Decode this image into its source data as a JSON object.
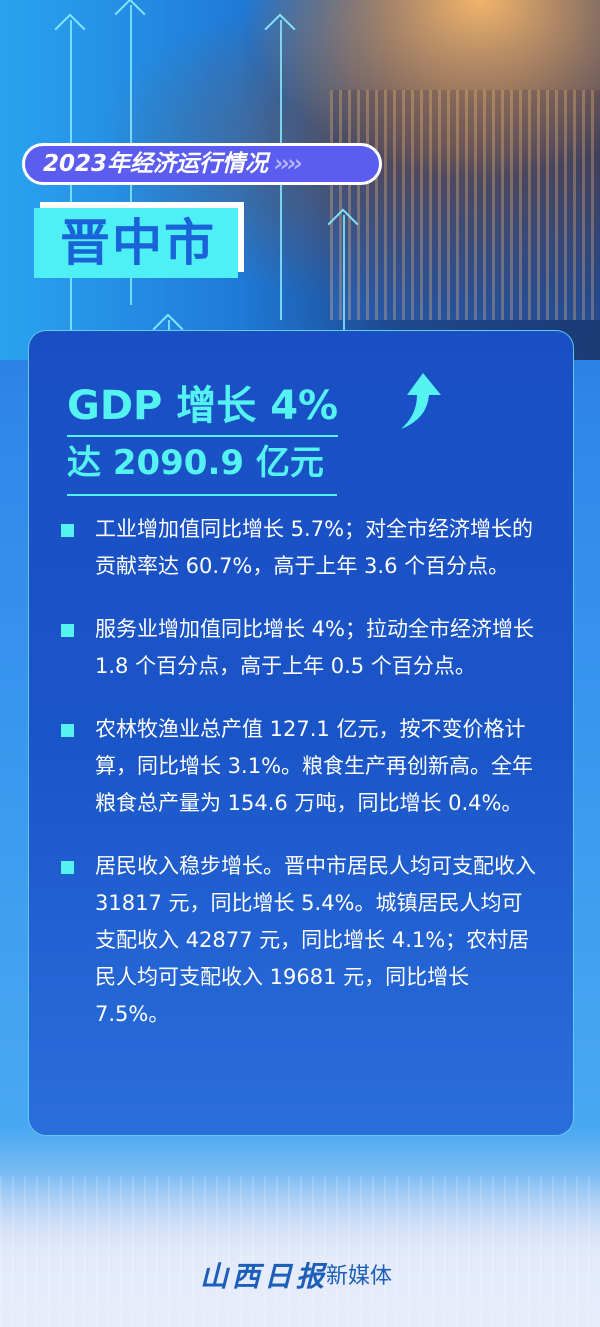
{
  "header": {
    "tag": "2023年经济运行情况",
    "tag_chevrons": "››››",
    "city": "晋中市"
  },
  "headline": {
    "gdp_growth": "GDP 增长 4%",
    "gdp_total": "达 2090.9 亿元",
    "icon": "arrow-up-icon"
  },
  "items": [
    {
      "text": "工业增加值同比增长 5.7%；对全市经济增长的贡献率达 60.7%，高于上年 3.6 个百分点。"
    },
    {
      "text": "服务业增加值同比增长 4%；拉动全市经济增长 1.8 个百分点，高于上年 0.5 个百分点。"
    },
    {
      "text": "农林牧渔业总产值 127.1 亿元，按不变价格计算，同比增长 3.1%。粮食生产再创新高。全年粮食总产量为 154.6 万吨，同比增长 0.4%。"
    },
    {
      "text": "居民收入稳步增长。晋中市居民人均可支配收入 31817 元，同比增长 5.4%。城镇居民人均可支配收入 42877 元，同比增长 4.1%；农村居民人均可支配收入 19681 元，同比增长 7.5%。"
    }
  ],
  "footer": {
    "logo": "山西日报",
    "sub": "新媒体"
  },
  "colors": {
    "accent": "#55f2f2",
    "tag_bg": "#5b5cf0",
    "card_bg": "#1a4fc4"
  }
}
